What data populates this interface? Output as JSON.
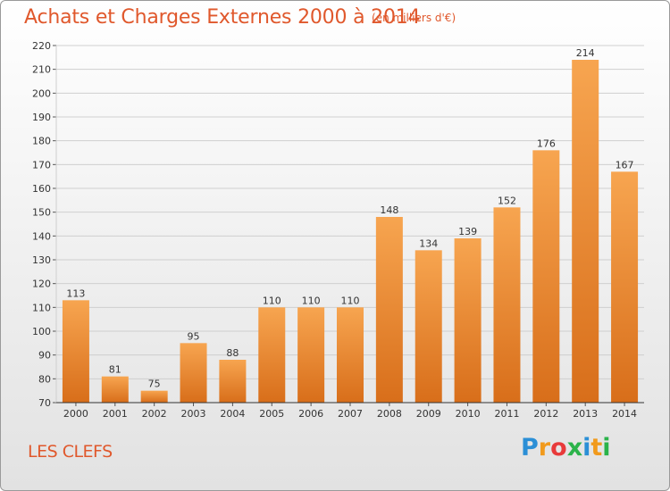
{
  "header": {
    "title": "Achats et Charges Externes 2000 à 2014",
    "unit": "(en milliers d'€)"
  },
  "footer": {
    "commune": "LES CLEFS",
    "logo_text": "Proxiti",
    "logo_letters": [
      {
        "ch": "P",
        "color": "#2b8fd6"
      },
      {
        "ch": "r",
        "color": "#f19a1c"
      },
      {
        "ch": "o",
        "color": "#e83a3a"
      },
      {
        "ch": "x",
        "color": "#2bb34a"
      },
      {
        "ch": "i",
        "color": "#2b8fd6"
      },
      {
        "ch": "t",
        "color": "#f19a1c"
      },
      {
        "ch": "i",
        "color": "#2bb34a"
      }
    ]
  },
  "colors": {
    "accent": "#e0582c",
    "bar_top": "#f7a550",
    "bar_bottom": "#d86e1a"
  },
  "chart_data": {
    "type": "bar",
    "title": "Achats et Charges Externes 2000 à 2014",
    "xlabel": "",
    "ylabel": "",
    "categories": [
      "2000",
      "2001",
      "2002",
      "2003",
      "2004",
      "2005",
      "2006",
      "2007",
      "2008",
      "2009",
      "2010",
      "2011",
      "2012",
      "2013",
      "2014"
    ],
    "values": [
      113,
      81,
      75,
      95,
      88,
      110,
      110,
      110,
      148,
      134,
      139,
      152,
      176,
      214,
      167
    ],
    "ylim": [
      70,
      220
    ],
    "yticks": [
      70,
      80,
      90,
      100,
      110,
      120,
      130,
      140,
      150,
      160,
      170,
      180,
      190,
      200,
      210,
      220
    ],
    "grid": true,
    "data_labels": true
  }
}
